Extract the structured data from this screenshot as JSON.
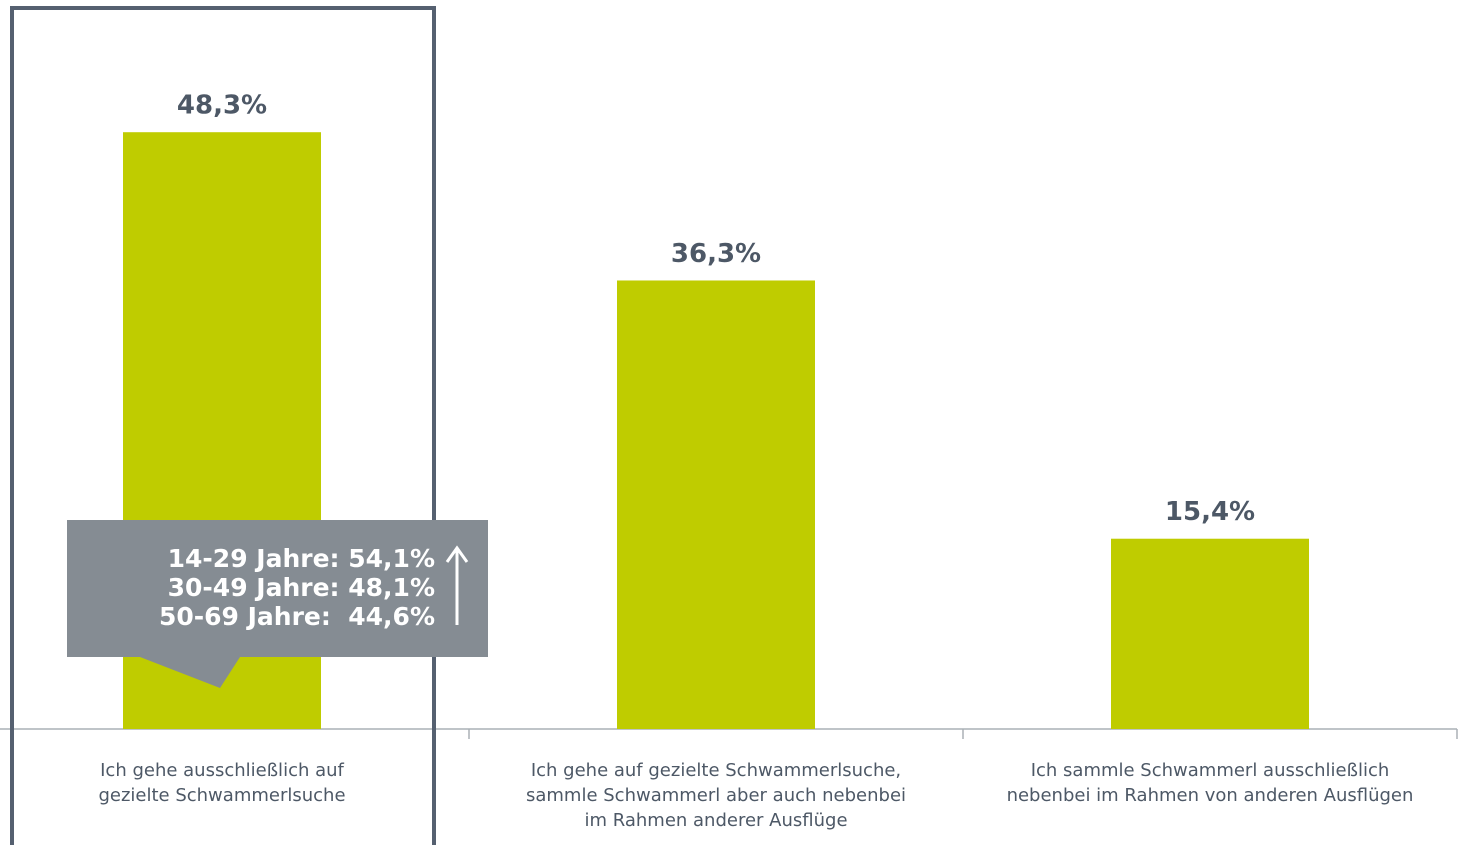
{
  "chart_data": {
    "type": "bar",
    "categories": [
      [
        "Ich gehe ausschließlich auf",
        "gezielte Schwammerlsuche"
      ],
      [
        "Ich gehe auf gezielte Schwammerlsuche,",
        "sammle Schwammerl aber auch nebenbei",
        "im Rahmen anderer Ausflüge"
      ],
      [
        "Ich sammle Schwammerl ausschließlich",
        "nebenbei im Rahmen von anderen Ausflügen"
      ]
    ],
    "values": [
      48.3,
      36.3,
      15.4
    ],
    "value_labels": [
      "48,3%",
      "36,3%",
      "15,4%"
    ],
    "color": "#bfcc00",
    "ylim": [
      0,
      59
    ],
    "annotation": [
      "14-29 Jahre: 54,1%",
      "30-49 Jahre: 48,1%",
      "50-69 Jahre:  44,6%"
    ]
  }
}
